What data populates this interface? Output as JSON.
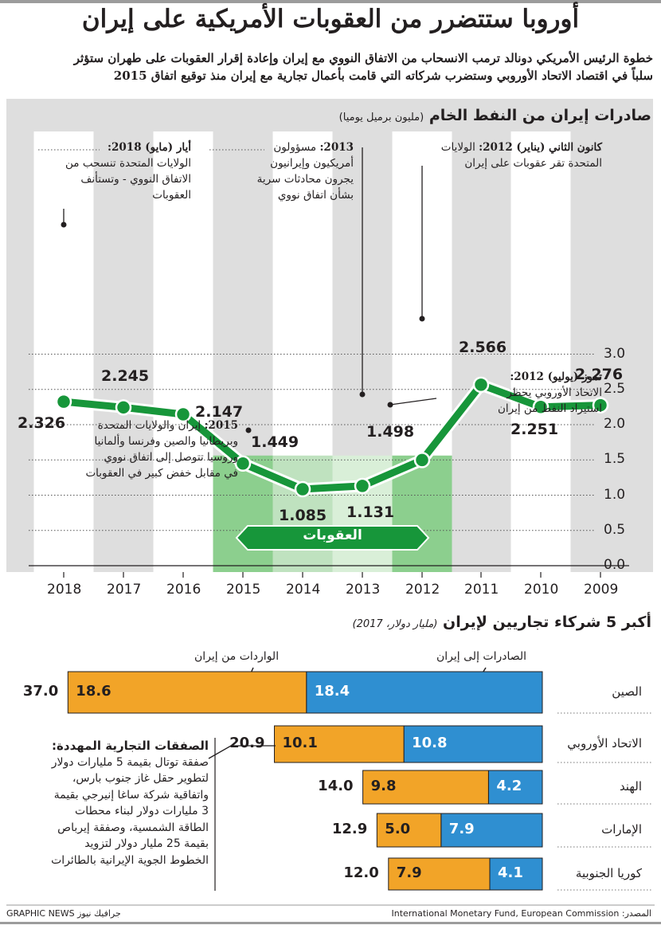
{
  "header": {
    "title": "أوروبا ستتضرر من العقوبات الأمريكية على إيران",
    "subtitle_line1": "خطوة الرئيس الأمريكي دونالد ترمب الانسحاب من الاتفاق النووي مع إيران وإعادة إقرار العقوبات على طهران ستؤثر",
    "subtitle_line2": "سلباً في اقتصاد الاتحاد الأوروبي وستضرب شركاته التي قامت بأعمال تجارية مع إيران منذ توقيع اتفاق 2015"
  },
  "chart_data": [
    {
      "type": "line",
      "title": "صادرات إيران من النفط الخام",
      "unit": "(مليون برميل يوميا)",
      "x": [
        "2018",
        "2017",
        "2016",
        "2015",
        "2014",
        "2013",
        "2012",
        "2011",
        "2010",
        "2009"
      ],
      "values": [
        2.326,
        2.245,
        2.147,
        1.449,
        1.085,
        1.131,
        1.498,
        2.566,
        2.251,
        2.276
      ],
      "value_labels": [
        "2.326",
        "2.245",
        "2.147",
        "1.449",
        "1.085",
        "1.131",
        "1.498",
        "2.566",
        "2.251",
        "2.276"
      ],
      "y_ticks": [
        "0.0",
        "0.5",
        "1.0",
        "1.5",
        "2.0",
        "2.5",
        "3.0"
      ],
      "ylim": [
        0,
        3.0
      ],
      "grid": true,
      "sanctions_band_label": "العقوبات",
      "line_color": "#17963a",
      "sanctions_color": "#8ccf8e",
      "annotations": [
        {
          "date": "أيار (مايو) 2018:",
          "lines": [
            "الولايات المتحدة تنسحب من",
            "الاتفاق النووي - وتستأنف",
            "العقوبات"
          ]
        },
        {
          "date": "2013:",
          "lines": [
            "مسؤولون",
            "أمريكيون وإيرانيون",
            "يجرون محادثات سرية",
            "بشأن اتفاق نووي"
          ]
        },
        {
          "date": "كانون الثاني (يناير) 2012:",
          "lines": [
            "الولايات",
            "المتحدة تقر عقوبات على إيران"
          ]
        },
        {
          "date": "تموز (يوليو) 2012:",
          "lines": [
            "الاتحاد الأوروبي يحظر",
            "استيراد النفط من إيران"
          ]
        },
        {
          "date": "2015:",
          "lines": [
            "إيران والولايات المتحدة",
            "وبريطانيا والصين وفرنسا وألمانيا",
            "وروسيا تتوصل إلى اتفاق نووي",
            "في مقابل خفض كبير في العقوبات"
          ]
        }
      ]
    },
    {
      "type": "bar",
      "title": "أكبر 5 شركاء تجاريين لإيران",
      "unit": "(مليار دولار، 2017)",
      "categories": [
        "الصين",
        "الاتحاد الأوروبي",
        "الهند",
        "الإمارات",
        "كوريا الجنوبية"
      ],
      "series": [
        {
          "name": "الصادرات إلى إيران",
          "values": [
            18.4,
            10.8,
            4.2,
            7.9,
            4.1
          ],
          "labels": [
            "18.4",
            "10.8",
            "4.2",
            "7.9",
            "4.1"
          ],
          "color": "#2f8fd1"
        },
        {
          "name": "الواردات من إيران",
          "values": [
            18.6,
            10.1,
            9.8,
            5.0,
            7.9
          ],
          "labels": [
            "18.6",
            "10.1",
            "9.8",
            "5.0",
            "7.9"
          ],
          "color": "#f2a428"
        }
      ],
      "totals": [
        37.0,
        20.9,
        14.0,
        12.9,
        12.0
      ],
      "total_labels": [
        "37.0",
        "20.9",
        "14.0",
        "12.9",
        "12.0"
      ],
      "deals_box": {
        "title": "الصفقات التجارية المهددة:",
        "lines": [
          "صفقة توتال بقيمة 5 مليارات دولار",
          "لتطوير حقل غاز جنوب بارس،",
          "واتفاقية شركة ساغا إنيرجي بقيمة",
          "3 مليارات دولار لبناء محطات",
          "الطاقة الشمسية، وصفقة إيرباص",
          "بقيمة 25 مليار دولار لتزويد",
          "الخطوط الجوية الإيرانية بالطائرات"
        ]
      }
    }
  ],
  "footer": {
    "brand": "GRAPHIC NEWS جرافيك نيوز",
    "source_label": "المصدر:",
    "source_text": "International Monetary Fund, European Commission"
  }
}
